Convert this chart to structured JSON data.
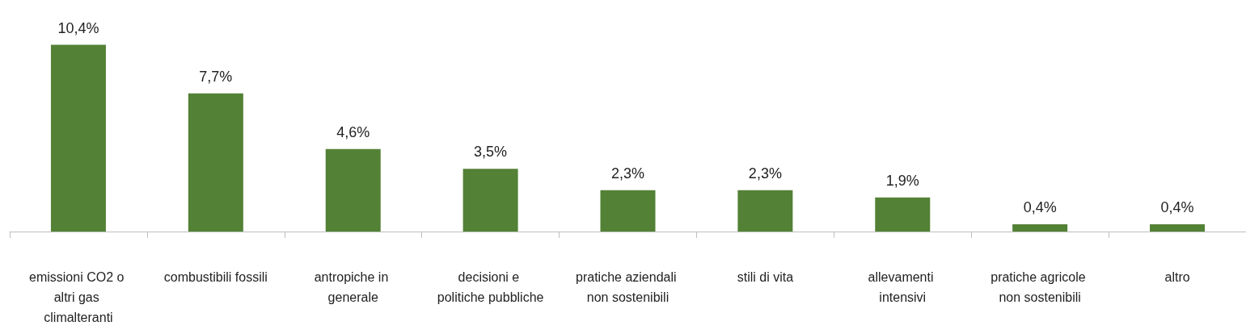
{
  "chart_data": {
    "type": "bar",
    "categories": [
      "emissioni CO2 o altri gas climalteranti",
      "combustibili fossili",
      "antropiche in generale",
      "decisioni e politiche pubbliche",
      "pratiche aziendali non sostenibili",
      "stili di vita",
      "allevamenti intensivi",
      "pratiche agricole non sostenibili",
      "altro"
    ],
    "values": [
      10.4,
      7.7,
      4.6,
      3.5,
      2.3,
      2.3,
      1.9,
      0.4,
      0.4
    ],
    "value_labels": [
      "10,4%",
      "7,7%",
      "4,6%",
      "3,5%",
      "2,3%",
      "2,3%",
      "1,9%",
      "0,4%",
      "0,4%"
    ],
    "color": "#538135",
    "tick_labels": "x"
  }
}
